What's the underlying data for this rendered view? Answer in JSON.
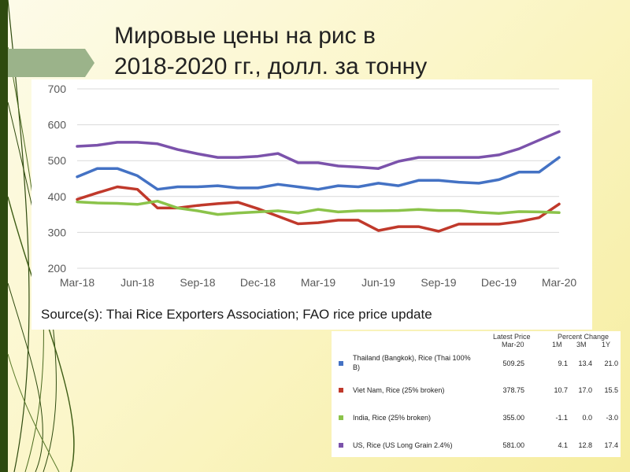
{
  "slide": {
    "title_line1": "Мировые цены на рис в",
    "title_line2": "2018-2020 гг., долл. за тонну",
    "colors": {
      "background": "#fbf6c9",
      "accent_bar": "#2e4a0f",
      "tab": "#9bb38a"
    }
  },
  "chart_data": {
    "type": "line",
    "title": "",
    "xlabel": "",
    "ylabel": "",
    "ylim": [
      200,
      700
    ],
    "yticks": [
      "200",
      "300",
      "400",
      "500",
      "600",
      "700"
    ],
    "xticks": [
      "Mar-18",
      "Jun-18",
      "Sep-18",
      "Dec-18",
      "Mar-19",
      "Jun-19",
      "Sep-19",
      "Dec-19",
      "Mar-20"
    ],
    "x": [
      "Mar-18",
      "Apr-18",
      "May-18",
      "Jun-18",
      "Jul-18",
      "Aug-18",
      "Sep-18",
      "Oct-18",
      "Nov-18",
      "Dec-18",
      "Jan-19",
      "Feb-19",
      "Mar-19",
      "Apr-19",
      "May-19",
      "Jun-19",
      "Jul-19",
      "Aug-19",
      "Sep-19",
      "Oct-19",
      "Nov-19",
      "Dec-19",
      "Jan-20",
      "Feb-20",
      "Mar-20"
    ],
    "grid": true,
    "legend": "none",
    "series": [
      {
        "color": "#4472c4",
        "values": [
          455,
          478,
          478,
          458,
          420,
          427,
          427,
          430,
          424,
          424,
          434,
          427,
          420,
          430,
          427,
          437,
          430,
          445,
          445,
          440,
          437,
          447,
          468,
          468,
          509
        ]
      },
      {
        "color": "#c0392b",
        "values": [
          392,
          410,
          427,
          420,
          368,
          368,
          375,
          380,
          384,
          366,
          345,
          324,
          327,
          334,
          334,
          305,
          316,
          316,
          303,
          323,
          323,
          323,
          330,
          341,
          379
        ]
      },
      {
        "color": "#8bc34a",
        "values": [
          385,
          382,
          381,
          378,
          387,
          368,
          360,
          350,
          354,
          357,
          360,
          354,
          364,
          357,
          360,
          360,
          361,
          364,
          361,
          361,
          356,
          353,
          358,
          357,
          355
        ]
      },
      {
        "color": "#7b52ab",
        "values": [
          540,
          543,
          551,
          551,
          547,
          531,
          519,
          509,
          509,
          512,
          520,
          494,
          494,
          485,
          482,
          478,
          498,
          509,
          509,
          509,
          509,
          516,
          533,
          557,
          581
        ]
      }
    ],
    "source_text": "Source(s): Thai Rice Exporters Association; FAO rice price update"
  },
  "table": {
    "header_latest_line1": "Latest Price",
    "header_latest_line2": "Mar-20",
    "header_percent": "Percent Change",
    "header_1m": "1M",
    "header_3m": "3M",
    "header_1y": "1Y",
    "rows": [
      {
        "color": "#4472c4",
        "name_line1": "Thailand (Bangkok), Rice (Thai 100%",
        "name_line2": "B)",
        "price": "509.25",
        "m1": "9.1",
        "m3": "13.4",
        "y1": "21.0"
      },
      {
        "color": "#c0392b",
        "name_line1": "Viet Nam, Rice (25% broken)",
        "name_line2": "",
        "price": "378.75",
        "m1": "10.7",
        "m3": "17.0",
        "y1": "15.5"
      },
      {
        "color": "#8bc34a",
        "name_line1": "India, Rice (25% broken)",
        "name_line2": "",
        "price": "355.00",
        "m1": "-1.1",
        "m3": "0.0",
        "y1": "-3.0"
      },
      {
        "color": "#7b52ab",
        "name_line1": "US, Rice (US Long Grain 2.4%)",
        "name_line2": "",
        "price": "581.00",
        "m1": "4.1",
        "m3": "12.8",
        "y1": "17.4"
      }
    ]
  }
}
